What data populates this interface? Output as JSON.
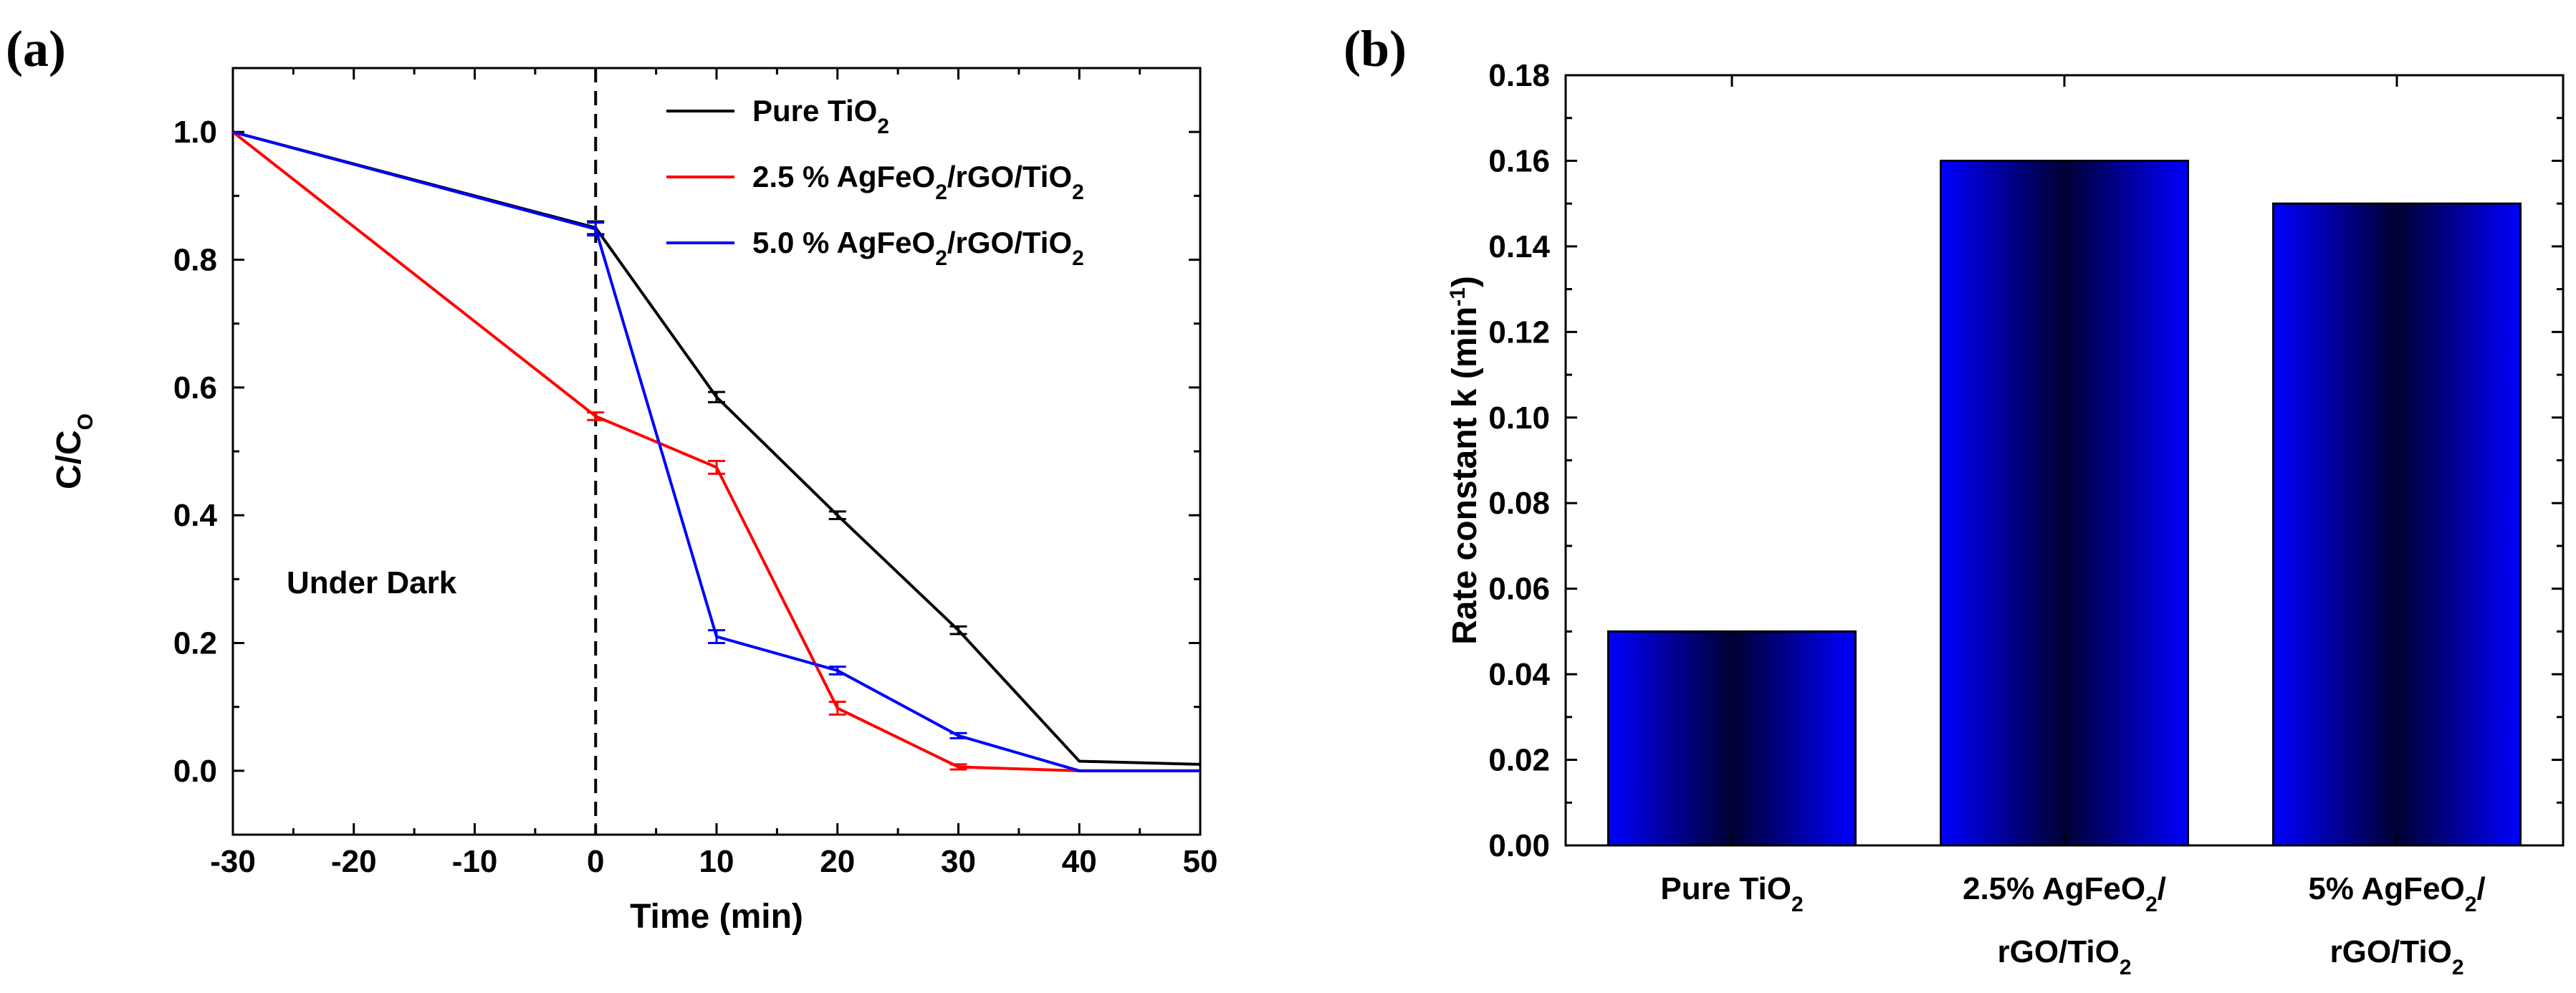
{
  "chart_data": [
    {
      "panel": "(a)",
      "type": "line",
      "xlabel": "Time (min)",
      "ylabel_main": "C/C",
      "ylabel_sub": "O",
      "xlim": [
        -30,
        50
      ],
      "ylim": [
        -0.1,
        1.1
      ],
      "xticks": [
        -30,
        -20,
        -10,
        0,
        10,
        20,
        30,
        40,
        50
      ],
      "yticks": [
        0.0,
        0.2,
        0.4,
        0.6,
        0.8,
        1.0
      ],
      "xtick_labels": [
        "-30",
        "-20",
        "-10",
        "0",
        "10",
        "20",
        "30",
        "40",
        "50"
      ],
      "ytick_labels": [
        "0.0",
        "0.2",
        "0.4",
        "0.6",
        "0.8",
        "1.0"
      ],
      "annotation": "Under Dark",
      "dark_line_x": 0,
      "legend_position": "top-right",
      "series": [
        {
          "name": "Pure TiO2",
          "legend_parts": [
            [
              "Pure TiO",
              ""
            ],
            [
              "2",
              "sub"
            ]
          ],
          "color": "#000000",
          "x": [
            -30,
            0,
            10,
            20,
            30,
            40,
            50
          ],
          "y": [
            1.0,
            0.85,
            0.585,
            0.4,
            0.22,
            0.015,
            0.01
          ],
          "err": [
            0,
            0.01,
            0.008,
            0.006,
            0.006,
            0,
            0
          ]
        },
        {
          "name": "2.5 % AgFeO2/rGO/TiO2",
          "legend_parts": [
            [
              "2.5 % AgFeO",
              ""
            ],
            [
              "2",
              "sub"
            ],
            [
              "/rGO/TiO",
              ""
            ],
            [
              "2",
              "sub"
            ]
          ],
          "color": "#ff0000",
          "x": [
            -30,
            0,
            10,
            20,
            30,
            40,
            50
          ],
          "y": [
            1.0,
            0.555,
            0.475,
            0.098,
            0.006,
            0.0,
            0.0
          ],
          "err": [
            0,
            0.006,
            0.01,
            0.01,
            0.004,
            0,
            0
          ]
        },
        {
          "name": "5.0 % AgFeO2/rGO/TiO2",
          "legend_parts": [
            [
              "5.0 % AgFeO",
              ""
            ],
            [
              "2",
              "sub"
            ],
            [
              "/rGO/TiO",
              ""
            ],
            [
              "2",
              "sub"
            ]
          ],
          "color": "#0000ff",
          "x": [
            -30,
            0,
            10,
            20,
            30,
            40,
            50
          ],
          "y": [
            1.0,
            0.848,
            0.21,
            0.157,
            0.055,
            0.0,
            0.0
          ],
          "err": [
            0,
            0.01,
            0.01,
            0.006,
            0.004,
            0,
            0
          ]
        }
      ]
    },
    {
      "panel": "(b)",
      "type": "bar",
      "ylabel_main": "Rate constant k (min",
      "ylabel_sup": "-1",
      "ylabel_end": ")",
      "ylim": [
        0.0,
        0.18
      ],
      "yticks": [
        0.0,
        0.02,
        0.04,
        0.06,
        0.08,
        0.1,
        0.12,
        0.14,
        0.16,
        0.18
      ],
      "ytick_labels": [
        "0.00",
        "0.02",
        "0.04",
        "0.06",
        "0.08",
        "0.10",
        "0.12",
        "0.14",
        "0.16",
        "0.18"
      ],
      "bar_color": "#0000ff",
      "bar_center_color": "#000033",
      "categories": [
        {
          "name": "Pure TiO2",
          "lines": [
            [
              [
                "Pure TiO",
                ""
              ],
              [
                "2",
                "sub"
              ]
            ]
          ]
        },
        {
          "name": "2.5% AgFeO2/rGO/TiO2",
          "lines": [
            [
              [
                "2.5% AgFeO",
                ""
              ],
              [
                "2",
                "sub"
              ],
              [
                "/",
                ""
              ]
            ],
            [
              [
                "rGO/TiO",
                ""
              ],
              [
                "2",
                "sub"
              ]
            ]
          ]
        },
        {
          "name": "5% AgFeO2/rGO/TiO2",
          "lines": [
            [
              [
                "5% AgFeO",
                ""
              ],
              [
                "2",
                "sub"
              ],
              [
                "/",
                ""
              ]
            ],
            [
              [
                "rGO/TiO",
                ""
              ],
              [
                "2",
                "sub"
              ]
            ]
          ]
        }
      ],
      "values": [
        0.05,
        0.16,
        0.15
      ]
    }
  ]
}
